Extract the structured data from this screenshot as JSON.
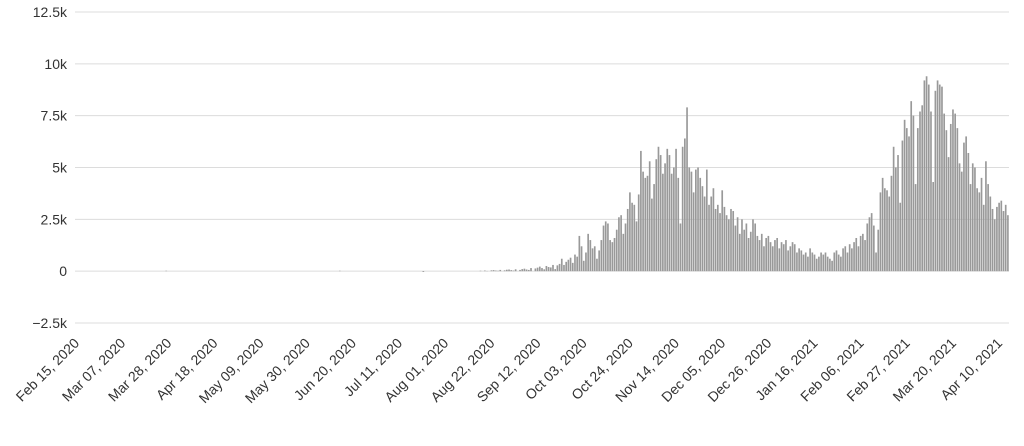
{
  "chart_data": {
    "type": "bar",
    "color": "#999999",
    "grid": true,
    "ylim": [
      -2500,
      12500
    ],
    "yticks": [
      {
        "value": -2500,
        "label": "−2.5k"
      },
      0,
      {
        "value": 2500,
        "label": "2.5k"
      },
      {
        "value": 5000,
        "label": "5k"
      },
      {
        "value": 7500,
        "label": "7.5k"
      },
      {
        "value": 10000,
        "label": "10k"
      },
      {
        "value": 12500,
        "label": "12.5k"
      }
    ],
    "categories": [
      "Feb 15, 2020",
      null,
      null,
      null,
      null,
      null,
      null,
      null,
      null,
      null,
      null,
      null,
      null,
      null,
      null,
      null,
      null,
      null,
      null,
      null,
      null,
      "Mar 07, 2020",
      null,
      null,
      null,
      null,
      null,
      null,
      null,
      null,
      null,
      null,
      null,
      null,
      null,
      null,
      null,
      null,
      null,
      null,
      null,
      null,
      "Mar 28, 2020",
      null,
      null,
      null,
      null,
      null,
      null,
      null,
      null,
      null,
      null,
      null,
      null,
      null,
      null,
      null,
      null,
      null,
      null,
      null,
      null,
      "Apr 18, 2020",
      null,
      null,
      null,
      null,
      null,
      null,
      null,
      null,
      null,
      null,
      null,
      null,
      null,
      null,
      null,
      null,
      null,
      null,
      null,
      null,
      "May 09, 2020",
      null,
      null,
      null,
      null,
      null,
      null,
      null,
      null,
      null,
      null,
      null,
      null,
      null,
      null,
      null,
      null,
      null,
      null,
      null,
      null,
      "May 30, 2020",
      null,
      null,
      null,
      null,
      null,
      null,
      null,
      null,
      null,
      null,
      null,
      null,
      null,
      null,
      null,
      null,
      null,
      null,
      null,
      null,
      "Jun 20, 2020",
      null,
      null,
      null,
      null,
      null,
      null,
      null,
      null,
      null,
      null,
      null,
      null,
      null,
      null,
      null,
      null,
      null,
      null,
      null,
      null,
      "Jul 11, 2020",
      null,
      null,
      null,
      null,
      null,
      null,
      null,
      null,
      null,
      null,
      null,
      null,
      null,
      null,
      null,
      null,
      null,
      null,
      null,
      null,
      "Aug 01, 2020",
      null,
      null,
      null,
      null,
      null,
      null,
      null,
      null,
      null,
      null,
      null,
      null,
      null,
      null,
      null,
      null,
      null,
      null,
      null,
      null,
      "Aug 22, 2020",
      null,
      null,
      null,
      null,
      null,
      null,
      null,
      null,
      null,
      null,
      null,
      null,
      null,
      null,
      null,
      null,
      null,
      null,
      null,
      null,
      "Sep 12, 2020",
      null,
      null,
      null,
      null,
      null,
      null,
      null,
      null,
      null,
      null,
      null,
      null,
      null,
      null,
      null,
      null,
      null,
      null,
      null,
      null,
      "Oct 03, 2020",
      null,
      null,
      null,
      null,
      null,
      null,
      null,
      null,
      null,
      null,
      null,
      null,
      null,
      null,
      null,
      null,
      null,
      null,
      null,
      null,
      "Oct 24, 2020",
      null,
      null,
      null,
      null,
      null,
      null,
      null,
      null,
      null,
      null,
      null,
      null,
      null,
      null,
      null,
      null,
      null,
      null,
      null,
      null,
      "Nov 14, 2020",
      null,
      null,
      null,
      null,
      null,
      null,
      null,
      null,
      null,
      null,
      null,
      null,
      null,
      null,
      null,
      null,
      null,
      null,
      null,
      null,
      "Dec 05, 2020",
      null,
      null,
      null,
      null,
      null,
      null,
      null,
      null,
      null,
      null,
      null,
      null,
      null,
      null,
      null,
      null,
      null,
      null,
      null,
      null,
      "Dec 26, 2020",
      null,
      null,
      null,
      null,
      null,
      null,
      null,
      null,
      null,
      null,
      null,
      null,
      null,
      null,
      null,
      null,
      null,
      null,
      null,
      null,
      "Jan 16, 2021",
      null,
      null,
      null,
      null,
      null,
      null,
      null,
      null,
      null,
      null,
      null,
      null,
      null,
      null,
      null,
      null,
      null,
      null,
      null,
      null,
      "Feb 06, 2021",
      null,
      null,
      null,
      null,
      null,
      null,
      null,
      null,
      null,
      null,
      null,
      null,
      null,
      null,
      null,
      null,
      null,
      null,
      null,
      null,
      "Feb 27, 2021",
      null,
      null,
      null,
      null,
      null,
      null,
      null,
      null,
      null,
      null,
      null,
      null,
      null,
      null,
      null,
      null,
      null,
      null,
      null,
      null,
      "Mar 20, 2021",
      null,
      null,
      null,
      null,
      null,
      null,
      null,
      null,
      null,
      null,
      null,
      null,
      null,
      null,
      null,
      null,
      null,
      null,
      null,
      null,
      "Apr 10, 2021",
      null,
      null,
      null,
      null
    ],
    "values": [
      0,
      0,
      0,
      0,
      0,
      0,
      0,
      0,
      0,
      0,
      0,
      0,
      0,
      0,
      0,
      0,
      0,
      0,
      0,
      0,
      0,
      0,
      0,
      0,
      0,
      0,
      0,
      0,
      0,
      0,
      0,
      0,
      0,
      0,
      0,
      0,
      0,
      0,
      0,
      0,
      0,
      20,
      0,
      0,
      0,
      0,
      0,
      0,
      0,
      0,
      0,
      0,
      0,
      0,
      0,
      0,
      0,
      0,
      0,
      0,
      0,
      0,
      0,
      0,
      0,
      0,
      0,
      0,
      0,
      0,
      0,
      0,
      0,
      0,
      0,
      0,
      0,
      0,
      0,
      0,
      0,
      0,
      0,
      0,
      0,
      0,
      0,
      0,
      0,
      0,
      0,
      0,
      0,
      0,
      0,
      0,
      0,
      0,
      0,
      0,
      0,
      0,
      0,
      0,
      0,
      0,
      0,
      0,
      0,
      0,
      0,
      0,
      0,
      0,
      0,
      0,
      0,
      0,
      0,
      0,
      20,
      0,
      0,
      0,
      0,
      0,
      0,
      0,
      0,
      0,
      0,
      0,
      0,
      0,
      0,
      0,
      0,
      0,
      0,
      0,
      0,
      0,
      0,
      0,
      0,
      0,
      0,
      0,
      0,
      0,
      0,
      0,
      0,
      0,
      0,
      0,
      0,
      0,
      -40,
      0,
      0,
      0,
      0,
      0,
      0,
      0,
      0,
      0,
      0,
      0,
      0,
      0,
      0,
      0,
      0,
      0,
      0,
      0,
      0,
      0,
      0,
      0,
      0,
      0,
      20,
      0,
      30,
      10,
      0,
      40,
      50,
      30,
      20,
      60,
      0,
      40,
      70,
      80,
      50,
      30,
      90,
      0,
      60,
      100,
      120,
      80,
      60,
      150,
      0,
      130,
      170,
      220,
      150,
      90,
      250,
      200,
      180,
      300,
      100,
      280,
      350,
      600,
      300,
      450,
      550,
      650,
      400,
      800,
      700,
      1700,
      1200,
      500,
      900,
      1800,
      1500,
      1100,
      1200,
      600,
      1000,
      1500,
      2200,
      2400,
      2300,
      1500,
      1400,
      1600,
      2000,
      2600,
      2700,
      1800,
      2300,
      3000,
      3800,
      3300,
      3200,
      2400,
      3700,
      5800,
      4800,
      4500,
      4600,
      5300,
      3500,
      4200,
      5400,
      6000,
      5600,
      4700,
      5200,
      5900,
      5600,
      4700,
      5000,
      5900,
      4500,
      2300,
      6000,
      6400,
      7900,
      5000,
      4800,
      3800,
      4900,
      5000,
      4500,
      4100,
      3600,
      4900,
      3200,
      3600,
      4000,
      3000,
      3200,
      2800,
      3900,
      3100,
      2700,
      2500,
      3000,
      2900,
      2200,
      2600,
      1800,
      2500,
      2000,
      2300,
      1600,
      1900,
      2500,
      2300,
      1700,
      1500,
      1800,
      1200,
      1600,
      1700,
      1400,
      1200,
      1500,
      1600,
      1100,
      1400,
      1300,
      1500,
      1000,
      1200,
      1400,
      1300,
      900,
      1100,
      1000,
      800,
      900,
      700,
      1100,
      900,
      800,
      600,
      700,
      900,
      800,
      900,
      700,
      600,
      500,
      900,
      1000,
      800,
      700,
      1100,
      1200,
      900,
      1300,
      1100,
      1400,
      1600,
      1200,
      1700,
      1800,
      1500,
      2300,
      2600,
      2800,
      2200,
      900,
      2000,
      3800,
      4500,
      4000,
      3900,
      3600,
      4600,
      6000,
      5000,
      5600,
      3300,
      6300,
      7300,
      6900,
      6500,
      8200,
      7500,
      4200,
      6900,
      7700,
      8000,
      9200,
      9400,
      9000,
      7700,
      4300,
      8700,
      9200,
      9000,
      8900,
      7600,
      6800,
      5500,
      7100,
      7800,
      7600,
      6900,
      5200,
      4800,
      6200,
      6500,
      5700,
      4200,
      5200,
      5000,
      4000,
      3800,
      4500,
      3200,
      5300,
      4200,
      3600,
      3000,
      2500,
      3100,
      3300,
      3400,
      2900,
      3200,
      2700
    ]
  }
}
